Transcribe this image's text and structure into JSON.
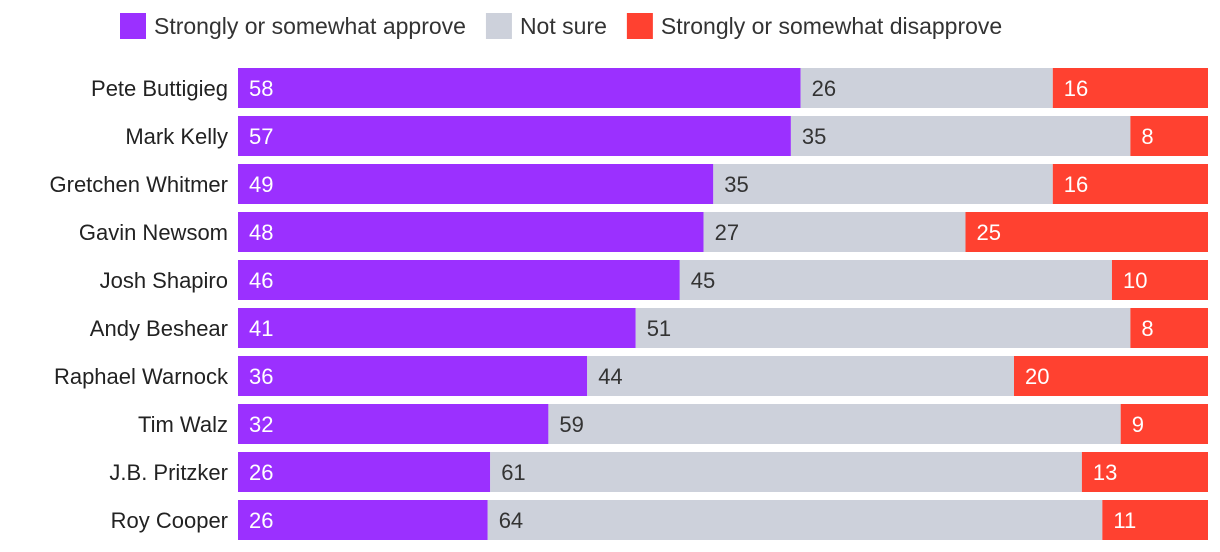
{
  "chart_data": {
    "type": "bar",
    "orientation": "horizontal",
    "stacked": "100%",
    "title": "",
    "xlabel": "",
    "ylabel": "",
    "legend_position": "top",
    "grid": false,
    "categories": [
      "Pete Buttigieg",
      "Mark Kelly",
      "Gretchen Whitmer",
      "Gavin Newsom",
      "Josh Shapiro",
      "Andy Beshear",
      "Raphael Warnock",
      "Tim Walz",
      "J.B. Pritzker",
      "Roy Cooper"
    ],
    "series": [
      {
        "name": "Strongly or somewhat approve",
        "color": "#9B30FF",
        "label_color": "#ffffff",
        "values": [
          58,
          57,
          49,
          48,
          46,
          41,
          36,
          32,
          26,
          26
        ]
      },
      {
        "name": "Not sure",
        "color": "#CDD1DB",
        "label_color": "#333333",
        "values": [
          26,
          35,
          35,
          27,
          45,
          51,
          44,
          59,
          61,
          64
        ]
      },
      {
        "name": "Strongly or somewhat disapprove",
        "color": "#FF4130",
        "label_color": "#ffffff",
        "values": [
          16,
          8,
          16,
          25,
          10,
          8,
          20,
          9,
          13,
          11
        ]
      }
    ]
  }
}
